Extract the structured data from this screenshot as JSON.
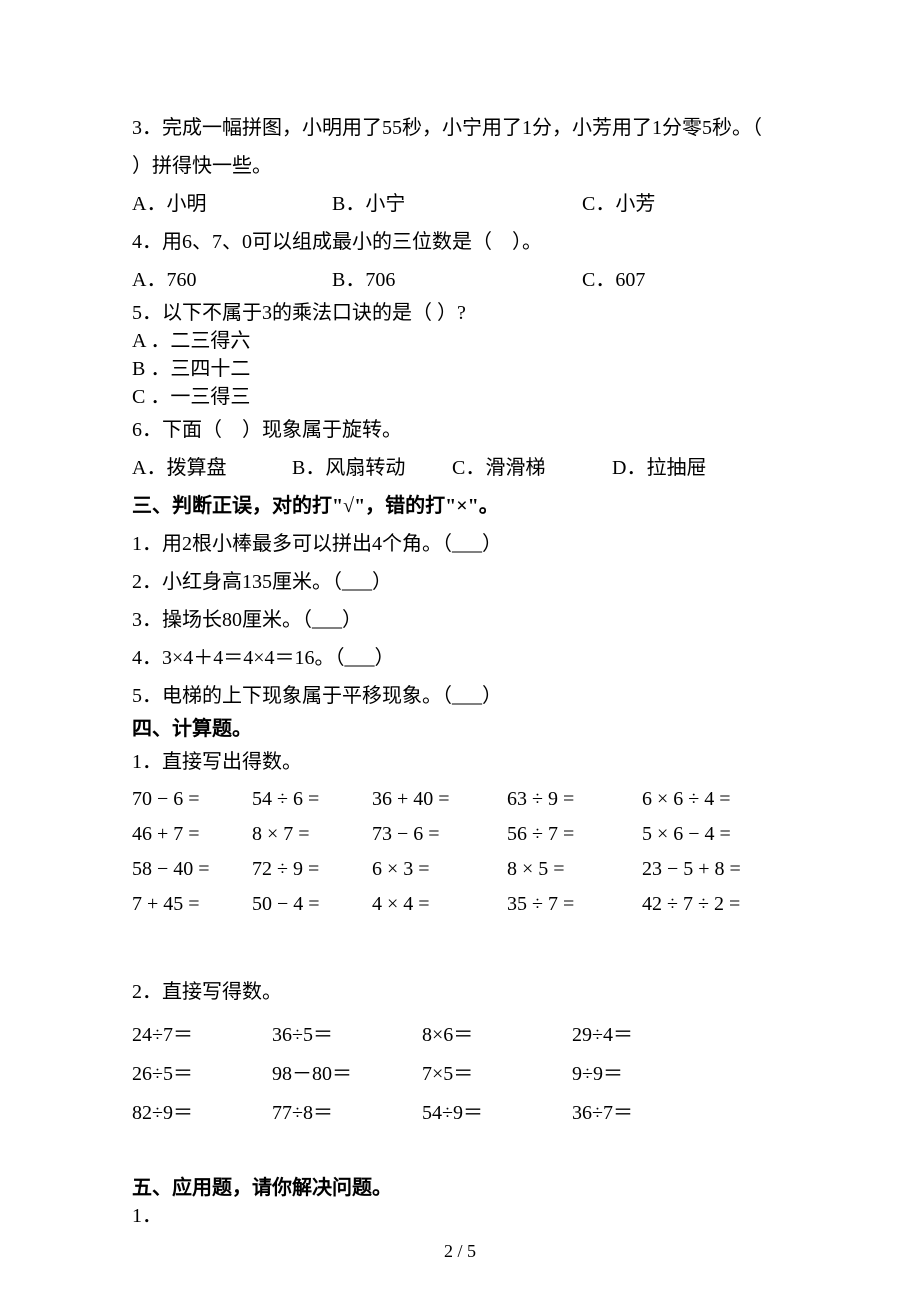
{
  "q3": {
    "text_a": "3．完成一幅拼图，小明用了55秒，小宁用了1分，小芳用了1分零5秒。（",
    "text_b": "）拼得快一些。",
    "opts": [
      "A．小明",
      "B．小宁",
      "C．小芳"
    ]
  },
  "q4": {
    "text": "4．用6、7、0可以组成最小的三位数是（　）。",
    "opts": [
      "A．760",
      "B．706",
      "C．607"
    ]
  },
  "q5": {
    "text": "5．以下不属于3的乘法口诀的是（  ）?",
    "opts": [
      "A ．二三得六",
      "B ．三四十二",
      "C ．一三得三"
    ]
  },
  "q6": {
    "text": "6．下面（　）现象属于旋转。",
    "opts": [
      "A．拨算盘",
      "B．风扇转动",
      "C．滑滑梯",
      "D．拉抽屉"
    ]
  },
  "section3": {
    "title": "三、判断正误，对的打\"√\"，错的打\"×\"。",
    "items": [
      "1．用2根小棒最多可以拼出4个角。（___）",
      "2．小红身高135厘米。（___）",
      "3．操场长80厘米。（___）",
      "4．3×4＋4＝4×4＝16。（___）",
      "5．电梯的上下现象属于平移现象。（___）"
    ]
  },
  "section4": {
    "title": "四、计算题。",
    "sub1": "1．直接写出得数。",
    "grid1": [
      "70 − 6 =",
      "54 ÷ 6 =",
      "36 + 40 =",
      "63 ÷ 9 =",
      "6 × 6 ÷ 4 =",
      "46 + 7 =",
      "8 × 7 =",
      "73 − 6 =",
      "56 ÷ 7 =",
      "5 × 6 − 4 =",
      "58 − 40 =",
      "72 ÷ 9 =",
      "6 × 3 =",
      "8 × 5 =",
      "23 − 5 + 8 =",
      "7 + 45 =",
      "50 − 4 =",
      "4 × 4 =",
      "35 ÷ 7 =",
      "42 ÷ 7 ÷ 2 ="
    ],
    "sub2": "2．直接写得数。",
    "grid2": [
      "24÷7＝",
      "36÷5＝",
      "8×6＝",
      "29÷4＝",
      "26÷5＝",
      "98－80＝",
      "7×5＝",
      "9÷9＝",
      "82÷9＝",
      "77÷8＝",
      "54÷9＝",
      "36÷7＝"
    ]
  },
  "section5": {
    "title": "五、应用题，请你解决问题。",
    "sub1": "1．"
  },
  "pagenum": "2 / 5"
}
